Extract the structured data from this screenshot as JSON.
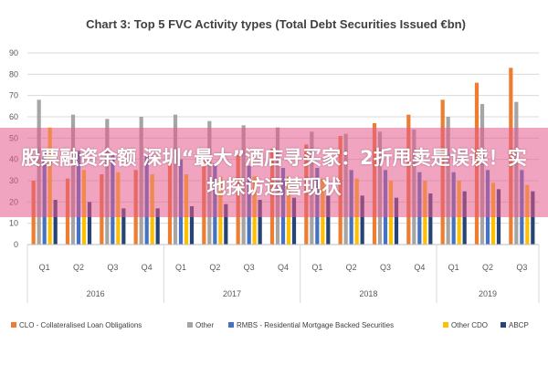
{
  "chart_data": {
    "type": "bar",
    "title": "Chart 3: Top 5 FVC Activity types (Total Debt Securities Issued €bn)",
    "ylim": [
      0,
      90
    ],
    "yticks": [
      0,
      10,
      20,
      30,
      40,
      50,
      60,
      70,
      80,
      90
    ],
    "categories": [
      "Q1",
      "Q2",
      "Q3",
      "Q4",
      "Q1",
      "Q2",
      "Q3",
      "Q4",
      "Q1",
      "Q2",
      "Q3",
      "Q4",
      "Q1",
      "Q2",
      "Q3"
    ],
    "years": [
      {
        "label": "2016",
        "quarters": 4
      },
      {
        "label": "2017",
        "quarters": 4
      },
      {
        "label": "2018",
        "quarters": 4
      },
      {
        "label": "2019",
        "quarters": 3
      }
    ],
    "series": [
      {
        "name": "CLO - Collateralised Loan Obligations",
        "color": "#ED7D31",
        "values": [
          30,
          31,
          33,
          35,
          38,
          40,
          42,
          45,
          47,
          51,
          57,
          61,
          68,
          76,
          83
        ]
      },
      {
        "name": "Other",
        "color": "#A5A5A5",
        "values": [
          68,
          61,
          59,
          60,
          61,
          58,
          56,
          55,
          53,
          52,
          53,
          54,
          60,
          66,
          67
        ]
      },
      {
        "name": "RMBS - Residential Mortgage Backed Securities",
        "color": "#4472C4",
        "values": [
          45,
          44,
          42,
          42,
          40,
          38,
          37,
          36,
          36,
          35,
          35,
          34,
          34,
          35,
          35
        ]
      },
      {
        "name": "Other CDO",
        "color": "#FFC000",
        "values": [
          55,
          35,
          34,
          33,
          33,
          32,
          32,
          32,
          31,
          31,
          30,
          30,
          30,
          29,
          28
        ]
      },
      {
        "name": "ABCP",
        "color": "#264478",
        "values": [
          21,
          20,
          17,
          17,
          18,
          19,
          21,
          22,
          23,
          23,
          22,
          24,
          25,
          26,
          25
        ]
      }
    ],
    "grid": true,
    "legend_position": "bottom"
  },
  "overlay": {
    "text": "股票融资余额 深圳“最大”酒店寻买家：2折甩卖是误读！实地探访运营现状"
  }
}
